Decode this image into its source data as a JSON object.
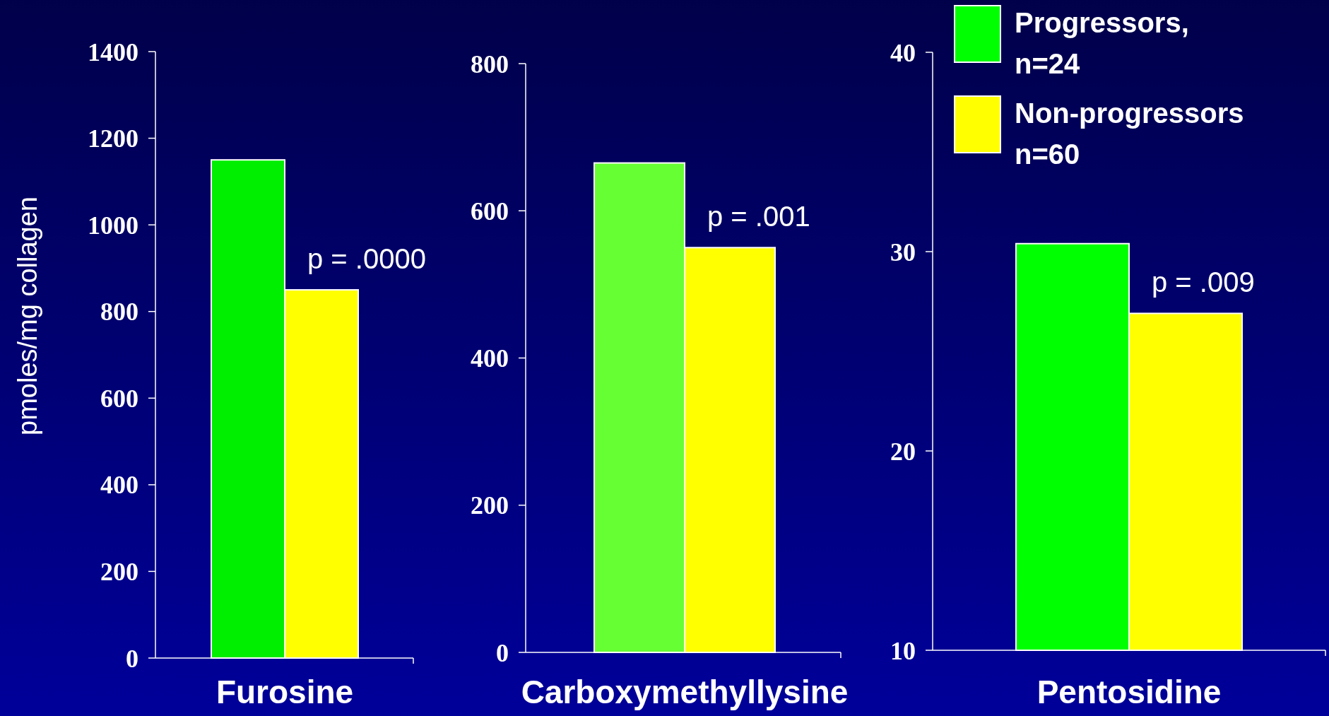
{
  "chart_data": [
    {
      "type": "bar",
      "ylabel": "pmoles/mg collagen",
      "categories": [
        "Furosine"
      ],
      "ylim": [
        0,
        1400
      ],
      "yticks": [
        0,
        200,
        400,
        600,
        800,
        1000,
        1200,
        1400
      ],
      "annotations": [
        "p = .0000"
      ],
      "series": [
        {
          "color": "#00ee00",
          "values": [
            1150
          ]
        },
        {
          "color": "#ffff00",
          "values": [
            850
          ]
        }
      ]
    },
    {
      "type": "bar",
      "categories": [
        "Carboxymethyllysine"
      ],
      "ylim": [
        0,
        800
      ],
      "yticks": [
        0,
        200,
        400,
        600,
        800
      ],
      "annotations": [
        "p = .001"
      ],
      "series": [
        {
          "color": "#66ff33",
          "values": [
            665
          ]
        },
        {
          "color": "#ffff00",
          "values": [
            550
          ]
        }
      ]
    },
    {
      "type": "bar",
      "categories": [
        "Pentosidine"
      ],
      "ylim": [
        10,
        40
      ],
      "yticks": [
        10,
        20,
        30,
        40
      ],
      "annotations": [
        "p = .009"
      ],
      "legend": "top",
      "series": [
        {
          "name": "Progressors,\nn=24",
          "color": "#00ff00",
          "values": [
            30.4
          ]
        },
        {
          "name": "Non-progressors\nn=60",
          "color": "#ffff00",
          "values": [
            26.9
          ]
        }
      ]
    }
  ]
}
